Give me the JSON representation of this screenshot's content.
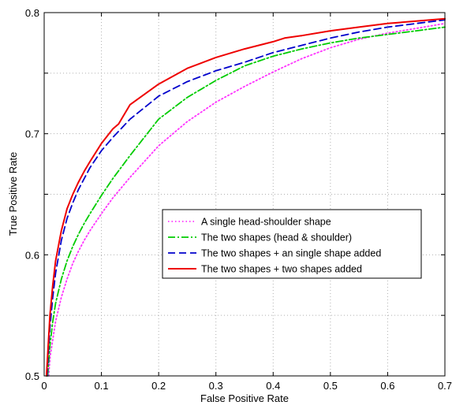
{
  "chart_data": {
    "type": "line",
    "title": "",
    "xlabel": "False Positive Rate",
    "ylabel": "True Positive Rate",
    "xlim": [
      0,
      0.7
    ],
    "ylim": [
      0.5,
      0.8
    ],
    "xticks": [
      "0",
      "0.1",
      "0.2",
      "0.3",
      "0.4",
      "0.5",
      "0.6",
      "0.7"
    ],
    "yticks": [
      "0.5",
      "0.6",
      "0.7",
      "0.8"
    ],
    "grid": true,
    "legend_position": "center-right",
    "series": [
      {
        "name": "A single head-shoulder shape",
        "color": "#ff33ff",
        "style": "dotted",
        "x": [
          0.008,
          0.01,
          0.015,
          0.02,
          0.03,
          0.04,
          0.05,
          0.06,
          0.07,
          0.08,
          0.1,
          0.12,
          0.15,
          0.2,
          0.25,
          0.3,
          0.35,
          0.4,
          0.45,
          0.5,
          0.55,
          0.6,
          0.65,
          0.7
        ],
        "y": [
          0.5,
          0.515,
          0.53,
          0.545,
          0.565,
          0.58,
          0.593,
          0.603,
          0.612,
          0.62,
          0.634,
          0.647,
          0.664,
          0.69,
          0.71,
          0.726,
          0.739,
          0.751,
          0.762,
          0.771,
          0.778,
          0.783,
          0.787,
          0.791
        ]
      },
      {
        "name": "The two shapes (head & shoulder)",
        "color": "#00cc00",
        "style": "dashdot",
        "x": [
          0.006,
          0.01,
          0.015,
          0.02,
          0.03,
          0.04,
          0.05,
          0.06,
          0.07,
          0.08,
          0.1,
          0.12,
          0.15,
          0.2,
          0.25,
          0.3,
          0.35,
          0.4,
          0.45,
          0.5,
          0.55,
          0.6,
          0.65,
          0.7
        ],
        "y": [
          0.5,
          0.525,
          0.545,
          0.56,
          0.58,
          0.595,
          0.607,
          0.617,
          0.626,
          0.634,
          0.649,
          0.663,
          0.682,
          0.712,
          0.73,
          0.744,
          0.756,
          0.764,
          0.77,
          0.775,
          0.779,
          0.782,
          0.785,
          0.788
        ]
      },
      {
        "name": "The two shapes + an single shape added",
        "color": "#0000cc",
        "style": "dashed",
        "x": [
          0.005,
          0.01,
          0.015,
          0.02,
          0.03,
          0.04,
          0.05,
          0.06,
          0.07,
          0.08,
          0.1,
          0.12,
          0.15,
          0.2,
          0.25,
          0.3,
          0.35,
          0.4,
          0.45,
          0.5,
          0.55,
          0.6,
          0.65,
          0.7
        ],
        "y": [
          0.5,
          0.54,
          0.565,
          0.585,
          0.612,
          0.63,
          0.643,
          0.654,
          0.663,
          0.672,
          0.686,
          0.697,
          0.712,
          0.731,
          0.743,
          0.752,
          0.759,
          0.767,
          0.773,
          0.779,
          0.784,
          0.788,
          0.791,
          0.794
        ]
      },
      {
        "name": "The two shapes + two shapes added",
        "color": "#ee0000",
        "style": "solid",
        "x": [
          0.004,
          0.01,
          0.015,
          0.02,
          0.03,
          0.04,
          0.05,
          0.06,
          0.07,
          0.08,
          0.1,
          0.12,
          0.13,
          0.15,
          0.2,
          0.25,
          0.3,
          0.35,
          0.4,
          0.42,
          0.45,
          0.5,
          0.55,
          0.6,
          0.65,
          0.7
        ],
        "y": [
          0.5,
          0.55,
          0.575,
          0.595,
          0.62,
          0.638,
          0.65,
          0.66,
          0.669,
          0.677,
          0.692,
          0.704,
          0.708,
          0.724,
          0.741,
          0.754,
          0.763,
          0.77,
          0.776,
          0.779,
          0.781,
          0.785,
          0.788,
          0.791,
          0.793,
          0.795
        ]
      }
    ]
  }
}
